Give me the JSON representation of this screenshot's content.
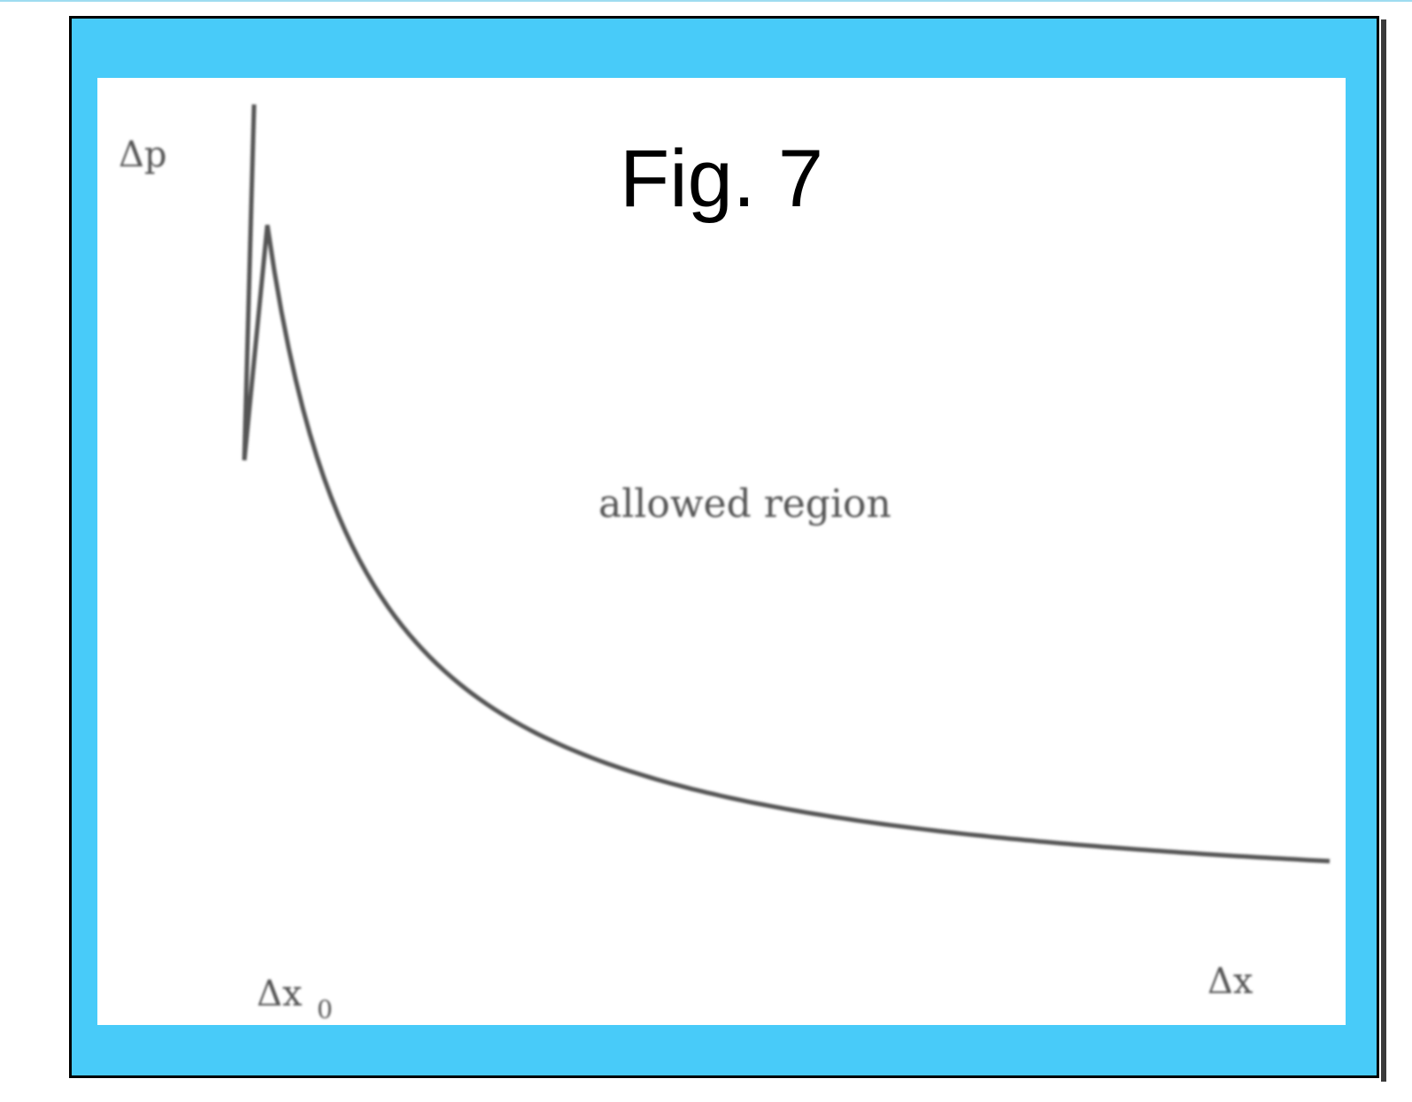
{
  "figure": {
    "title": "Fig. 7",
    "y_axis_label": "Δp",
    "x_axis_label": "Δx",
    "x_marker_label": "Δx",
    "x_marker_subscript": "0",
    "region_label": "allowed region"
  },
  "colors": {
    "frame": "#48cbf9",
    "border": "#000000",
    "background": "#ffffff",
    "ink": "#444444"
  }
}
